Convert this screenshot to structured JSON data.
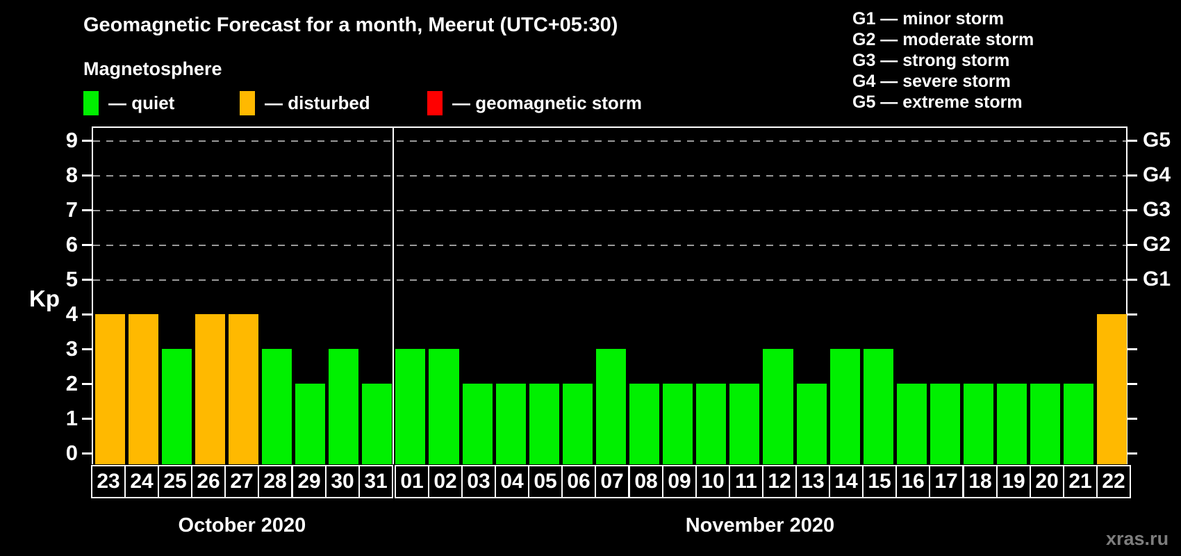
{
  "header": {
    "title": "Geomagnetic Forecast for a month, Meerut (UTC+05:30)",
    "subtitle": "Magnetosphere"
  },
  "legend": {
    "items": [
      {
        "name": "quiet",
        "label": "— quiet",
        "color": "#00F000"
      },
      {
        "name": "disturbed",
        "label": "— disturbed",
        "color": "#FFB900"
      },
      {
        "name": "storm",
        "label": "— geomagnetic storm",
        "color": "#FF0000"
      }
    ]
  },
  "storm_scale_legend": [
    "G1 — minor storm",
    "G2 — moderate storm",
    "G3 — strong storm",
    "G4 — severe storm",
    "G5 — extreme storm"
  ],
  "watermark": "xras.ru",
  "chart_data": {
    "type": "bar",
    "title": "Geomagnetic Forecast for a month, Meerut (UTC+05:30)",
    "ylabel": "Kp",
    "ylim": [
      0,
      9
    ],
    "yticks": [
      0,
      1,
      2,
      3,
      4,
      5,
      6,
      7,
      8,
      9
    ],
    "grid_levels": [
      5,
      6,
      7,
      8,
      9
    ],
    "grid_style": "dashed",
    "legend_position": "top",
    "right_scale": [
      {
        "label": "G1",
        "kp": 5
      },
      {
        "label": "G2",
        "kp": 6
      },
      {
        "label": "G3",
        "kp": 7
      },
      {
        "label": "G4",
        "kp": 8
      },
      {
        "label": "G5",
        "kp": 9
      }
    ],
    "status_colors": {
      "quiet": "#00F000",
      "disturbed": "#FFB900",
      "storm": "#FF0000"
    },
    "months": [
      {
        "label": "October 2020",
        "days": [
          {
            "day": "23",
            "kp": 4,
            "status": "disturbed"
          },
          {
            "day": "24",
            "kp": 4,
            "status": "disturbed"
          },
          {
            "day": "25",
            "kp": 3,
            "status": "quiet"
          },
          {
            "day": "26",
            "kp": 4,
            "status": "disturbed"
          },
          {
            "day": "27",
            "kp": 4,
            "status": "disturbed"
          },
          {
            "day": "28",
            "kp": 3,
            "status": "quiet"
          },
          {
            "day": "29",
            "kp": 2,
            "status": "quiet"
          },
          {
            "day": "30",
            "kp": 3,
            "status": "quiet"
          },
          {
            "day": "31",
            "kp": 2,
            "status": "quiet"
          }
        ]
      },
      {
        "label": "November 2020",
        "days": [
          {
            "day": "01",
            "kp": 3,
            "status": "quiet"
          },
          {
            "day": "02",
            "kp": 3,
            "status": "quiet"
          },
          {
            "day": "03",
            "kp": 2,
            "status": "quiet"
          },
          {
            "day": "04",
            "kp": 2,
            "status": "quiet"
          },
          {
            "day": "05",
            "kp": 2,
            "status": "quiet"
          },
          {
            "day": "06",
            "kp": 2,
            "status": "quiet"
          },
          {
            "day": "07",
            "kp": 3,
            "status": "quiet"
          },
          {
            "day": "08",
            "kp": 2,
            "status": "quiet"
          },
          {
            "day": "09",
            "kp": 2,
            "status": "quiet"
          },
          {
            "day": "10",
            "kp": 2,
            "status": "quiet"
          },
          {
            "day": "11",
            "kp": 2,
            "status": "quiet"
          },
          {
            "day": "12",
            "kp": 3,
            "status": "quiet"
          },
          {
            "day": "13",
            "kp": 2,
            "status": "quiet"
          },
          {
            "day": "14",
            "kp": 3,
            "status": "quiet"
          },
          {
            "day": "15",
            "kp": 3,
            "status": "quiet"
          },
          {
            "day": "16",
            "kp": 2,
            "status": "quiet"
          },
          {
            "day": "17",
            "kp": 2,
            "status": "quiet"
          },
          {
            "day": "18",
            "kp": 2,
            "status": "quiet"
          },
          {
            "day": "19",
            "kp": 2,
            "status": "quiet"
          },
          {
            "day": "20",
            "kp": 2,
            "status": "quiet"
          },
          {
            "day": "21",
            "kp": 2,
            "status": "quiet"
          },
          {
            "day": "22",
            "kp": 4,
            "status": "disturbed"
          }
        ]
      }
    ]
  }
}
